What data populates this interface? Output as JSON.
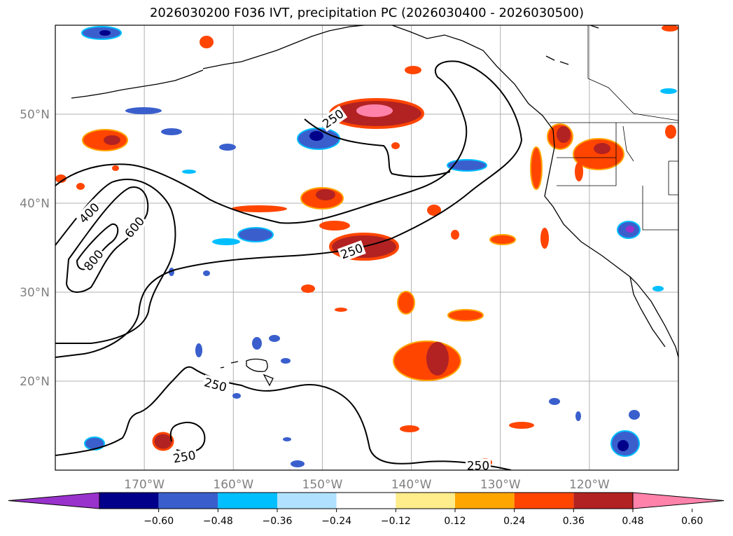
{
  "title": "2026030200 F036 IVT, precipitation PC (2026030400 - 2026030500)",
  "map": {
    "lon_range": [
      -180,
      -110
    ],
    "lat_range": [
      10,
      60
    ],
    "lon_ticks": [
      {
        "value": -170,
        "label": "170°W"
      },
      {
        "value": -160,
        "label": "160°W"
      },
      {
        "value": -150,
        "label": "150°W"
      },
      {
        "value": -140,
        "label": "140°W"
      },
      {
        "value": -130,
        "label": "130°W"
      },
      {
        "value": -120,
        "label": "120°W"
      }
    ],
    "lat_ticks": [
      {
        "value": 20,
        "label": "20°N"
      },
      {
        "value": 30,
        "label": "30°N"
      },
      {
        "value": 40,
        "label": "40°N"
      },
      {
        "value": 50,
        "label": "50°N"
      }
    ],
    "grid": true
  },
  "contour_labels": [
    {
      "label": "250",
      "lon": -148.8,
      "lat": 49.5,
      "angle": -35
    },
    {
      "label": "250",
      "lon": -146.7,
      "lat": 34.6,
      "angle": -20
    },
    {
      "label": "250",
      "lon": -162,
      "lat": 19.6,
      "angle": 15
    },
    {
      "label": "250",
      "lon": -165.5,
      "lat": 11.5,
      "angle": -10
    },
    {
      "label": "250",
      "lon": -132.5,
      "lat": 10.5,
      "angle": 0
    },
    {
      "label": "400",
      "lon": -176.2,
      "lat": 38.9,
      "angle": -45
    },
    {
      "label": "600",
      "lon": -171.1,
      "lat": 37.3,
      "angle": -50
    },
    {
      "label": "800",
      "lon": -175.7,
      "lat": 33.6,
      "angle": -50
    }
  ],
  "colorbar": {
    "colors": [
      "#9932CC",
      "#00008B",
      "#3A5FCD",
      "#00BFFF",
      "#B0E2FF",
      "#FFFFFF",
      "#FFEC8B",
      "#FFA500",
      "#FF4500",
      "#B22222",
      "#FF82AB"
    ],
    "ticks": [
      "−0.60",
      "−0.48",
      "−0.36",
      "−0.24",
      "−0.12",
      "0.12",
      "0.24",
      "0.36",
      "0.48",
      "0.60"
    ]
  }
}
